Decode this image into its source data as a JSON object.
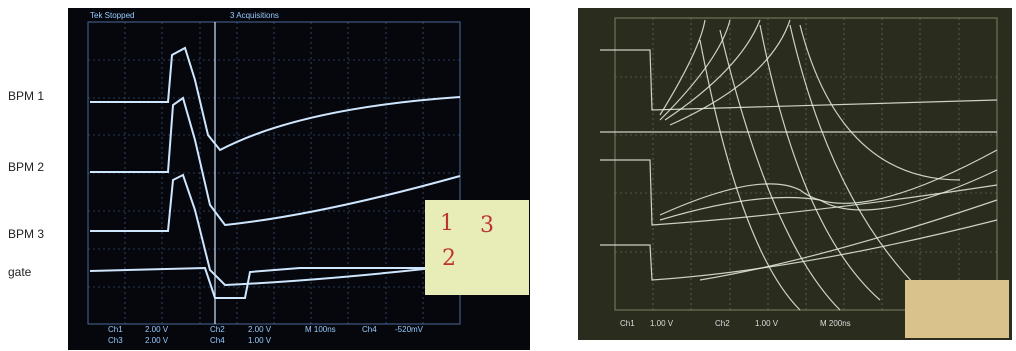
{
  "labels": [
    "BPM 1",
    "BPM 2",
    "BPM 3",
    "gate"
  ],
  "left_scope": {
    "status": "Tek Stopped",
    "acquisitions": "3 Acquisitions",
    "readouts": [
      "Ch1",
      "2.00 V",
      "Ch3",
      "2.00 V",
      "Ch2",
      "2.00 V",
      "Ch4",
      "1.00 V",
      "M 100ns",
      "Ch4",
      "-520mV"
    ],
    "note": [
      "1",
      "3",
      "2"
    ]
  },
  "right_scope": {
    "readouts": [
      "Ch1",
      "1.00 V",
      "Ch2",
      "1.00 V",
      "M 200ns"
    ]
  }
}
